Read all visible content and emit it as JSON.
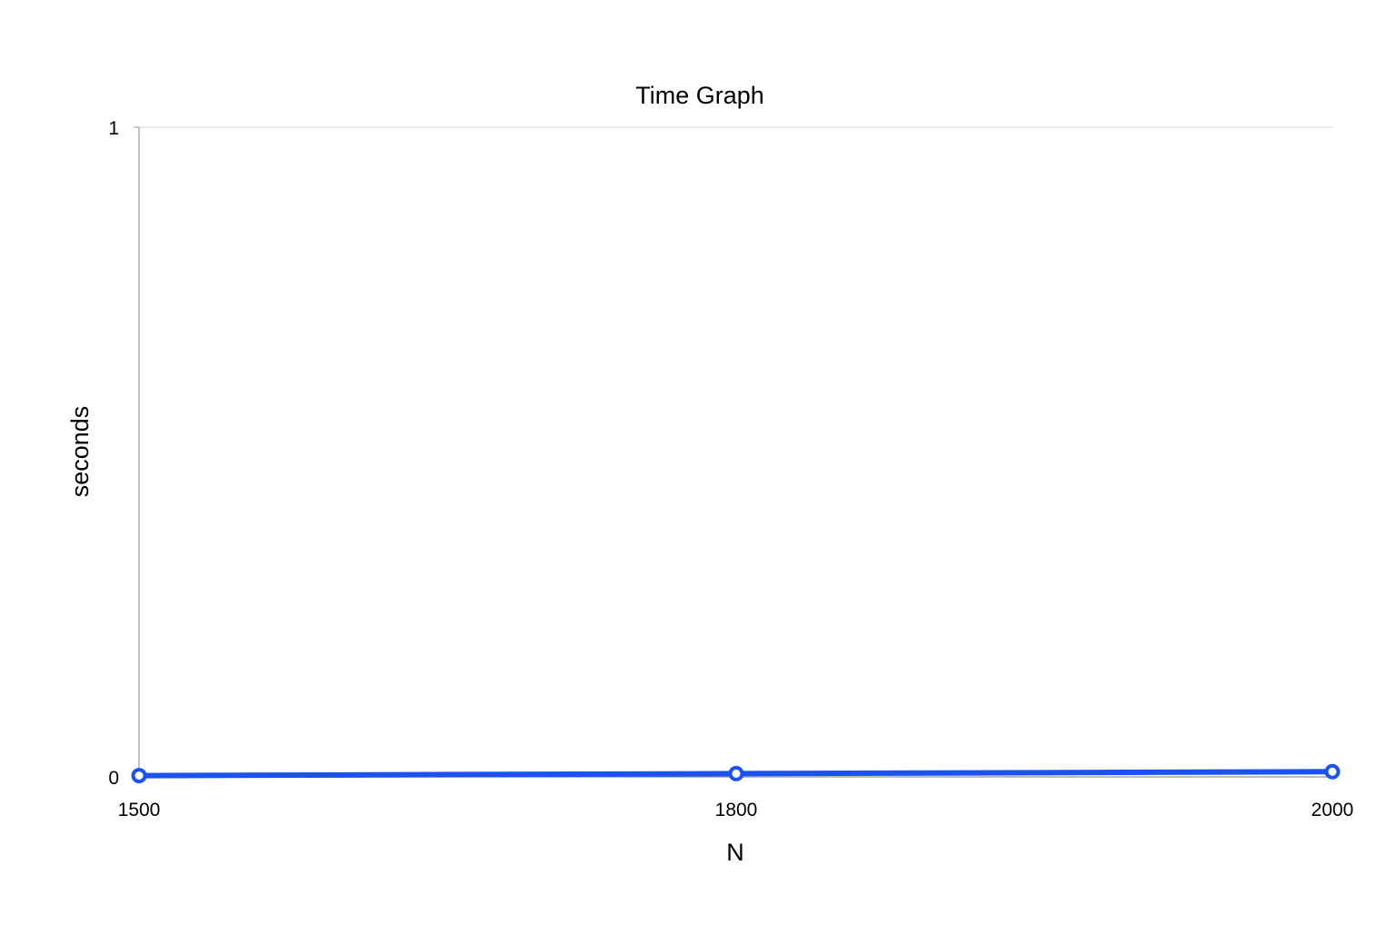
{
  "chart_data": {
    "type": "line",
    "title": "Time Graph",
    "xlabel": "N",
    "ylabel": "seconds",
    "x_ticks": [
      "1500",
      "1800",
      "2000"
    ],
    "y_ticks": [
      "0",
      "1"
    ],
    "ylim": [
      0,
      1
    ],
    "grid": true,
    "legend": "none",
    "series": [
      {
        "x": [
          "1500",
          "1800",
          "2000"
        ],
        "values": [
          0.002,
          0.005,
          0.008
        ],
        "color": "#1a53f0"
      }
    ]
  }
}
